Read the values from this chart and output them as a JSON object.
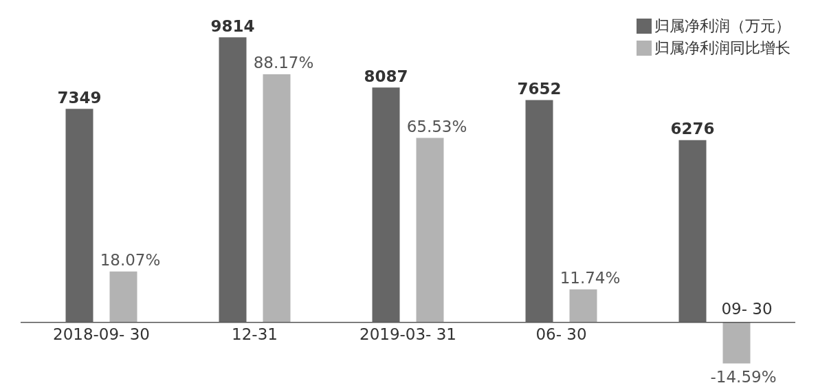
{
  "chart_data": {
    "type": "bar",
    "categories": [
      "2018-09- 30",
      "12-31",
      "2019-03- 31",
      "06- 30",
      "09- 30"
    ],
    "series": [
      {
        "name": "归属净利润（万元）",
        "color": "#666666",
        "values": [
          7349,
          9814,
          8087,
          7652,
          6276
        ],
        "value_labels": [
          "7349",
          "9814",
          "8087",
          "7652",
          "6276"
        ]
      },
      {
        "name": "归属净利润同比增长",
        "color": "#b3b3b3",
        "axis": "y2",
        "values": [
          18.07,
          88.17,
          65.53,
          11.74,
          -14.59
        ],
        "value_labels": [
          "18.07%",
          "88.17%",
          "65.53%",
          "11.74%",
          "-14.59%"
        ]
      }
    ],
    "tick_labels": "x",
    "legend": "top right"
  }
}
